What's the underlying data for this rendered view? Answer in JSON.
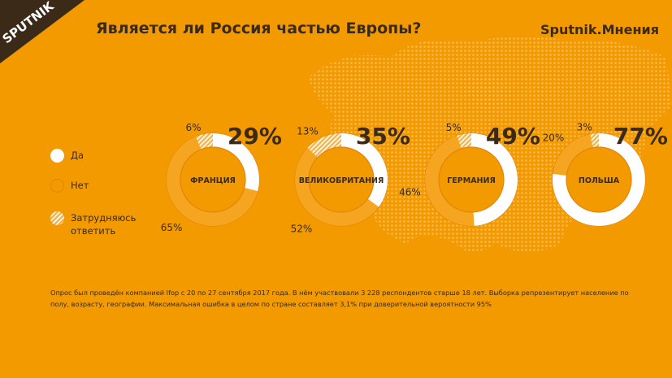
{
  "header": {
    "logo_text": "SPUTNIK",
    "title": "Является ли Россия частью Европы?",
    "brand": "Sputnik.Мнения"
  },
  "legend": {
    "yes": "Да",
    "no": "Нет",
    "hard": "Затрудняюсь ответить"
  },
  "colors": {
    "background": "#f29a00",
    "yes": "#ffffff",
    "no": "#f29a00",
    "hard_hatch": "#f5b54a",
    "text": "#3b2a18"
  },
  "chart_data": {
    "type": "pie",
    "series_names": [
      "Да",
      "Затрудняюсь ответить",
      "Нет"
    ],
    "charts": [
      {
        "country": "ФРАНЦИЯ",
        "yes": 29,
        "hard": 6,
        "no": 65,
        "yes_label": "29%",
        "hard_label": "6%",
        "no_label": "65%"
      },
      {
        "country": "ВЕЛИКОБРИТАНИЯ",
        "yes": 35,
        "hard": 13,
        "no": 52,
        "yes_label": "35%",
        "hard_label": "13%",
        "no_label": "52%"
      },
      {
        "country": "ГЕРМАНИЯ",
        "yes": 49,
        "hard": 5,
        "no": 46,
        "yes_label": "49%",
        "hard_label": "5%",
        "no_label": "46%"
      },
      {
        "country": "ПОЛЬША",
        "yes": 77,
        "hard": 3,
        "no": 20,
        "yes_label": "77%",
        "hard_label": "3%",
        "no_label": "20%"
      }
    ]
  },
  "footnote": "Опрос был проведён компанией Ifop с 20 по 27 сентября 2017 года. В нём участвовали 3 228 респондентов старше 18 лет. Выборка репрезентирует население по полу, возрасту, географии. Максимальная ошибка в целом по стране составляет 3,1% при доверительной вероятности 95%"
}
